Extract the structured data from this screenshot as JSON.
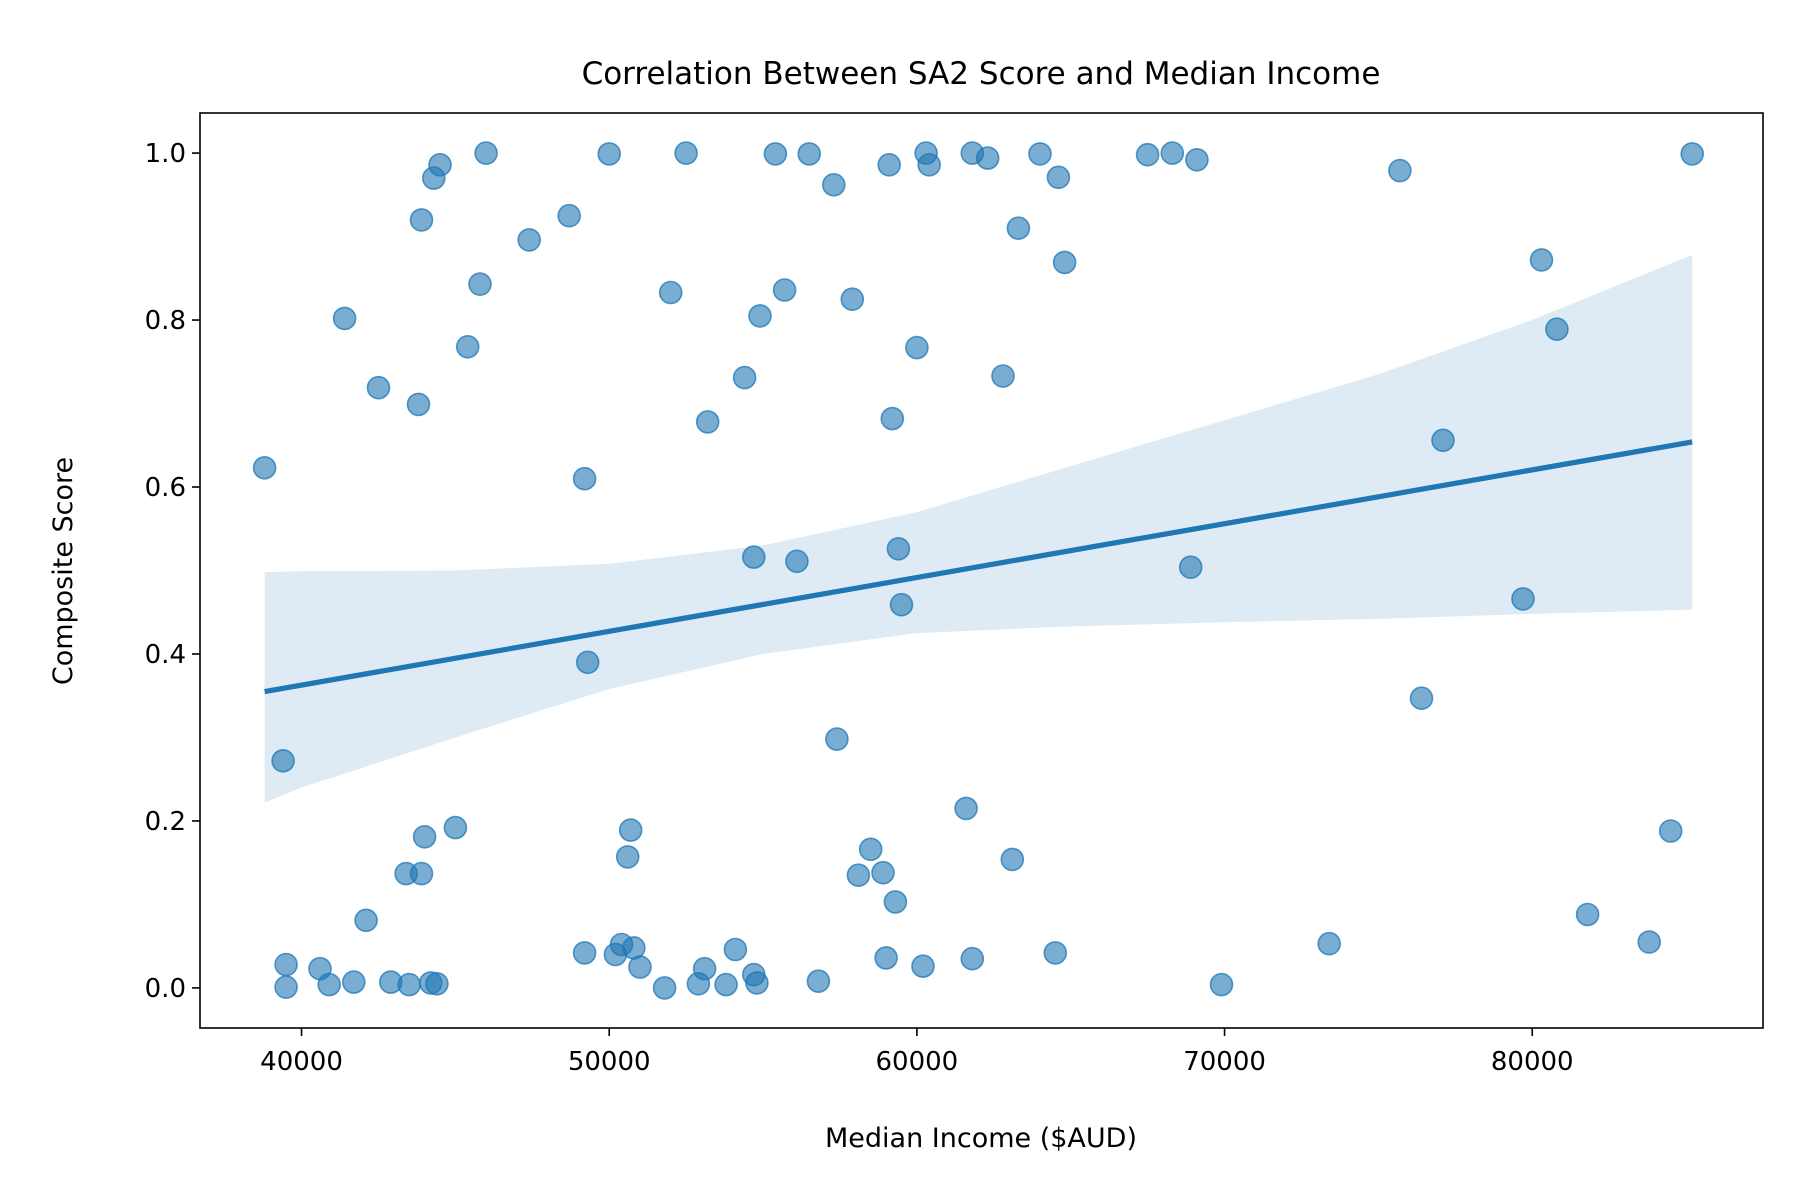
{
  "chart_data": {
    "type": "scatter",
    "title": "Correlation Between SA2 Score and Median Income",
    "xlabel": "Median Income ($AUD)",
    "ylabel": "Composite Score",
    "xlim": [
      36700,
      87500
    ],
    "ylim": [
      -0.048,
      1.048
    ],
    "xticks": [
      40000,
      50000,
      60000,
      70000,
      80000
    ],
    "xtick_labels": [
      "40000",
      "50000",
      "60000",
      "70000",
      "80000"
    ],
    "yticks": [
      0.0,
      0.2,
      0.4,
      0.6,
      0.8,
      1.0
    ],
    "ytick_labels": [
      "0.0",
      "0.2",
      "0.4",
      "0.6",
      "0.8",
      "1.0"
    ],
    "grid": false,
    "colors": {
      "points": "#1f77b4",
      "line": "#1f77b4",
      "band": "#1f77b4"
    },
    "points": [
      [
        38800,
        0.623
      ],
      [
        39400,
        0.272
      ],
      [
        39500,
        0.028
      ],
      [
        39500,
        0.001
      ],
      [
        40600,
        0.023
      ],
      [
        40900,
        0.004
      ],
      [
        41400,
        0.802
      ],
      [
        41700,
        0.007
      ],
      [
        42100,
        0.081
      ],
      [
        42500,
        0.719
      ],
      [
        42900,
        0.007
      ],
      [
        43400,
        0.137
      ],
      [
        43500,
        0.004
      ],
      [
        43800,
        0.699
      ],
      [
        43900,
        0.92
      ],
      [
        43900,
        0.137
      ],
      [
        44000,
        0.181
      ],
      [
        44200,
        0.006
      ],
      [
        44300,
        0.97
      ],
      [
        44400,
        0.005
      ],
      [
        44500,
        0.986
      ],
      [
        45000,
        0.192
      ],
      [
        45400,
        0.768
      ],
      [
        45800,
        0.843
      ],
      [
        46000,
        1.0
      ],
      [
        47400,
        0.896
      ],
      [
        48700,
        0.925
      ],
      [
        49200,
        0.042
      ],
      [
        49200,
        0.61
      ],
      [
        49300,
        0.39
      ],
      [
        50000,
        0.999
      ],
      [
        50200,
        0.04
      ],
      [
        50400,
        0.052
      ],
      [
        50600,
        0.157
      ],
      [
        50700,
        0.189
      ],
      [
        50800,
        0.048
      ],
      [
        51000,
        0.025
      ],
      [
        51800,
        0.0
      ],
      [
        52000,
        0.833
      ],
      [
        52500,
        1.0
      ],
      [
        52900,
        0.005
      ],
      [
        53100,
        0.023
      ],
      [
        53200,
        0.678
      ],
      [
        53800,
        0.004
      ],
      [
        54100,
        0.046
      ],
      [
        54400,
        0.731
      ],
      [
        54700,
        0.016
      ],
      [
        54700,
        0.516
      ],
      [
        54800,
        0.006
      ],
      [
        54900,
        0.805
      ],
      [
        55400,
        0.999
      ],
      [
        55700,
        0.836
      ],
      [
        56100,
        0.511
      ],
      [
        56500,
        0.999
      ],
      [
        56800,
        0.008
      ],
      [
        57300,
        0.962
      ],
      [
        57400,
        0.298
      ],
      [
        57900,
        0.825
      ],
      [
        58100,
        0.135
      ],
      [
        58500,
        0.166
      ],
      [
        58900,
        0.138
      ],
      [
        59000,
        0.036
      ],
      [
        59100,
        0.986
      ],
      [
        59200,
        0.682
      ],
      [
        59300,
        0.103
      ],
      [
        59400,
        0.526
      ],
      [
        59500,
        0.459
      ],
      [
        60000,
        0.767
      ],
      [
        60200,
        0.026
      ],
      [
        60300,
        1.0
      ],
      [
        60400,
        0.986
      ],
      [
        61600,
        0.215
      ],
      [
        61800,
        0.035
      ],
      [
        61800,
        1.0
      ],
      [
        62300,
        0.994
      ],
      [
        62800,
        0.733
      ],
      [
        63100,
        0.154
      ],
      [
        63300,
        0.91
      ],
      [
        64000,
        0.999
      ],
      [
        64500,
        0.042
      ],
      [
        64600,
        0.971
      ],
      [
        64800,
        0.869
      ],
      [
        67500,
        0.998
      ],
      [
        68300,
        1.0
      ],
      [
        68900,
        0.504
      ],
      [
        69100,
        0.992
      ],
      [
        69900,
        0.004
      ],
      [
        73400,
        0.053
      ],
      [
        75700,
        0.979
      ],
      [
        76400,
        0.347
      ],
      [
        77100,
        0.656
      ],
      [
        79700,
        0.466
      ],
      [
        80300,
        0.872
      ],
      [
        80800,
        0.789
      ],
      [
        81800,
        0.088
      ],
      [
        83800,
        0.055
      ],
      [
        84500,
        0.188
      ],
      [
        85200,
        0.999
      ]
    ],
    "regression": {
      "x": [
        38800,
        85200
      ],
      "y": [
        0.355,
        0.654
      ]
    },
    "confidence_band": {
      "x": [
        38800,
        40000,
        45000,
        50000,
        55000,
        60000,
        65000,
        70000,
        75000,
        80000,
        85200
      ],
      "upper": [
        0.498,
        0.499,
        0.5,
        0.508,
        0.53,
        0.57,
        0.625,
        0.68,
        0.735,
        0.8,
        0.878
      ],
      "lower": [
        0.222,
        0.24,
        0.3,
        0.358,
        0.4,
        0.425,
        0.433,
        0.438,
        0.442,
        0.448,
        0.453
      ]
    }
  }
}
